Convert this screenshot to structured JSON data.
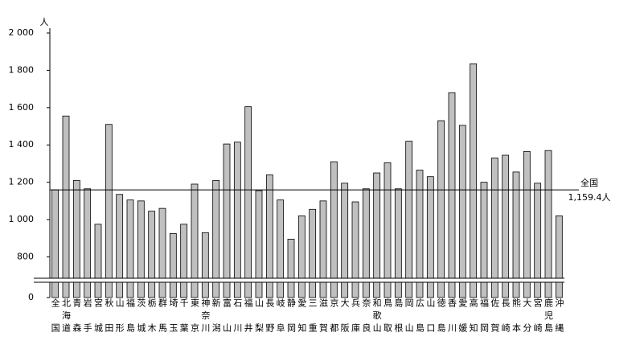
{
  "chart_data": {
    "type": "bar",
    "unit": "人",
    "categories": [
      "全国",
      "北海道",
      "青森",
      "岩手",
      "宮城",
      "秋田",
      "山形",
      "福島",
      "茨城",
      "栃木",
      "群馬",
      "埼玉",
      "千葉",
      "東京",
      "神奈川",
      "新潟",
      "富山",
      "石川",
      "福井",
      "山梨",
      "長野",
      "岐阜",
      "静岡",
      "愛知",
      "三重",
      "滋賀",
      "京都",
      "大阪",
      "兵庫",
      "奈良",
      "和歌山",
      "鳥取",
      "島根",
      "岡山",
      "広島",
      "山口",
      "徳島",
      "香川",
      "愛媛",
      "高知",
      "福岡",
      "佐賀",
      "長崎",
      "熊本",
      "大分",
      "宮崎",
      "鹿児島",
      "沖縄"
    ],
    "values": [
      1159.4,
      1555,
      1210,
      1165,
      975,
      1510,
      1135,
      1105,
      1100,
      1045,
      1060,
      925,
      975,
      1190,
      930,
      1210,
      1405,
      1415,
      1605,
      1155,
      1240,
      1105,
      895,
      1020,
      1055,
      1100,
      1310,
      1195,
      1095,
      1165,
      1250,
      1305,
      1165,
      1420,
      1265,
      1230,
      1530,
      1680,
      1505,
      1835,
      1200,
      1330,
      1345,
      1255,
      1365,
      1195,
      1370,
      1020
    ],
    "color": "#c0c0c0",
    "ylim": [
      0,
      2000
    ],
    "axis_break": [
      0,
      690
    ],
    "yticks": [
      0,
      800,
      {
        "value": 1000,
        "label": "1 000"
      },
      {
        "value": 1200,
        "label": "1 200"
      },
      {
        "value": 1400,
        "label": "1 400"
      },
      {
        "value": 1600,
        "label": "1 600"
      },
      {
        "value": 1800,
        "label": "1 800"
      },
      {
        "value": 2000,
        "label": "2 000"
      }
    ],
    "reference": {
      "value": 1159.4,
      "label": "全国",
      "value_label": "1,159.4人"
    }
  }
}
